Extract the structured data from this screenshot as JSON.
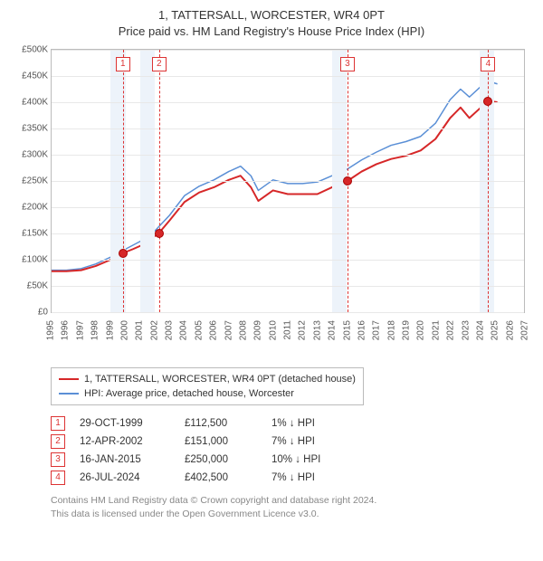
{
  "title_line1": "1, TATTERSALL, WORCESTER, WR4 0PT",
  "title_line2": "Price paid vs. HM Land Registry's House Price Index (HPI)",
  "chart": {
    "type": "line",
    "x_years": [
      1995,
      1996,
      1997,
      1998,
      1999,
      2000,
      2001,
      2002,
      2003,
      2004,
      2005,
      2006,
      2007,
      2008,
      2009,
      2010,
      2011,
      2012,
      2013,
      2014,
      2015,
      2016,
      2017,
      2018,
      2019,
      2020,
      2021,
      2022,
      2023,
      2024,
      2025,
      2026,
      2027
    ],
    "xlim": [
      1995,
      2027
    ],
    "ylim": [
      0,
      500000
    ],
    "ytick_step": 50000,
    "yticks": [
      "£0",
      "£50K",
      "£100K",
      "£150K",
      "£200K",
      "£250K",
      "£300K",
      "£350K",
      "£400K",
      "£450K",
      "£500K"
    ],
    "grid_color": "#e8e8e8",
    "background_color": "#ffffff",
    "shaded_color": "#edf3fa",
    "shaded_bands": [
      [
        1999,
        2000
      ],
      [
        2001,
        2002
      ],
      [
        2014,
        2015
      ],
      [
        2024,
        2025
      ]
    ],
    "marker_lines_color": "#d33",
    "marker_lines": [
      {
        "label": "1",
        "x": 1999.83
      },
      {
        "label": "2",
        "x": 2002.28
      },
      {
        "label": "3",
        "x": 2015.04
      },
      {
        "label": "4",
        "x": 2024.57
      }
    ],
    "series": [
      {
        "name": "property",
        "color": "#d62728",
        "width": 2,
        "points": [
          [
            1995.0,
            78000
          ],
          [
            1996.0,
            78000
          ],
          [
            1997.0,
            80000
          ],
          [
            1998.0,
            88000
          ],
          [
            1999.0,
            100000
          ],
          [
            1999.83,
            112500
          ],
          [
            2000.5,
            120000
          ],
          [
            2001.3,
            130000
          ],
          [
            2002.0,
            145000
          ],
          [
            2002.28,
            151000
          ],
          [
            2003.0,
            175000
          ],
          [
            2004.0,
            210000
          ],
          [
            2005.0,
            228000
          ],
          [
            2006.0,
            238000
          ],
          [
            2007.0,
            252000
          ],
          [
            2007.8,
            260000
          ],
          [
            2008.5,
            238000
          ],
          [
            2009.0,
            212000
          ],
          [
            2010.0,
            232000
          ],
          [
            2011.0,
            225000
          ],
          [
            2012.0,
            225000
          ],
          [
            2013.0,
            225000
          ],
          [
            2014.0,
            238000
          ],
          [
            2015.04,
            250000
          ],
          [
            2016.0,
            268000
          ],
          [
            2017.0,
            282000
          ],
          [
            2018.0,
            292000
          ],
          [
            2019.0,
            298000
          ],
          [
            2020.0,
            308000
          ],
          [
            2021.0,
            330000
          ],
          [
            2022.0,
            370000
          ],
          [
            2022.7,
            390000
          ],
          [
            2023.3,
            370000
          ],
          [
            2024.0,
            388000
          ],
          [
            2024.57,
            402500
          ],
          [
            2025.2,
            400000
          ]
        ]
      },
      {
        "name": "hpi",
        "color": "#5a8fd6",
        "width": 1.5,
        "points": [
          [
            1995.0,
            80000
          ],
          [
            1996.0,
            80000
          ],
          [
            1997.0,
            83000
          ],
          [
            1998.0,
            92000
          ],
          [
            1999.0,
            105000
          ],
          [
            2000.0,
            120000
          ],
          [
            2001.0,
            135000
          ],
          [
            2002.0,
            155000
          ],
          [
            2003.0,
            185000
          ],
          [
            2004.0,
            222000
          ],
          [
            2005.0,
            240000
          ],
          [
            2006.0,
            252000
          ],
          [
            2007.0,
            268000
          ],
          [
            2007.8,
            278000
          ],
          [
            2008.5,
            260000
          ],
          [
            2009.0,
            232000
          ],
          [
            2010.0,
            252000
          ],
          [
            2011.0,
            245000
          ],
          [
            2012.0,
            245000
          ],
          [
            2013.0,
            248000
          ],
          [
            2014.0,
            260000
          ],
          [
            2015.0,
            272000
          ],
          [
            2016.0,
            290000
          ],
          [
            2017.0,
            305000
          ],
          [
            2018.0,
            318000
          ],
          [
            2019.0,
            325000
          ],
          [
            2020.0,
            335000
          ],
          [
            2021.0,
            360000
          ],
          [
            2022.0,
            405000
          ],
          [
            2022.7,
            425000
          ],
          [
            2023.3,
            410000
          ],
          [
            2024.0,
            428000
          ],
          [
            2024.57,
            440000
          ],
          [
            2025.2,
            435000
          ]
        ]
      }
    ],
    "sale_dots_color": "#d62728",
    "sale_dots": [
      [
        1999.83,
        112500
      ],
      [
        2002.28,
        151000
      ],
      [
        2015.04,
        250000
      ],
      [
        2024.57,
        402500
      ]
    ]
  },
  "legend": [
    {
      "color": "#d62728",
      "label": "1, TATTERSALL, WORCESTER, WR4 0PT (detached house)"
    },
    {
      "color": "#5a8fd6",
      "label": "HPI: Average price, detached house, Worcester"
    }
  ],
  "sales": [
    {
      "idx": "1",
      "date": "29-OCT-1999",
      "price": "£112,500",
      "diff": "1% ↓ HPI"
    },
    {
      "idx": "2",
      "date": "12-APR-2002",
      "price": "£151,000",
      "diff": "7% ↓ HPI"
    },
    {
      "idx": "3",
      "date": "16-JAN-2015",
      "price": "£250,000",
      "diff": "10% ↓ HPI"
    },
    {
      "idx": "4",
      "date": "26-JUL-2024",
      "price": "£402,500",
      "diff": "7% ↓ HPI"
    }
  ],
  "footer_line1": "Contains HM Land Registry data © Crown copyright and database right 2024.",
  "footer_line2": "This data is licensed under the Open Government Licence v3.0."
}
